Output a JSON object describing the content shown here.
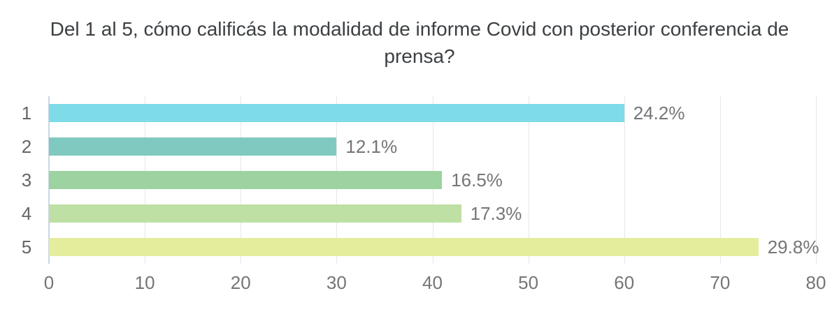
{
  "chart_data": {
    "type": "bar",
    "orientation": "horizontal",
    "title": "Del 1 al 5, cómo calificás la modalidad de informe Covid con posterior conferencia de prensa?",
    "categories": [
      "1",
      "2",
      "3",
      "4",
      "5"
    ],
    "values": [
      60,
      30,
      41,
      43,
      74
    ],
    "value_labels": [
      "24.2%",
      "12.1%",
      "16.5%",
      "17.3%",
      "29.8%"
    ],
    "bar_colors": [
      "#7edbe8",
      "#80c9c0",
      "#9cd3a1",
      "#bee0a4",
      "#e3ed9c"
    ],
    "xlabel": "",
    "ylabel": "",
    "xlim": [
      0,
      80
    ],
    "x_ticks": [
      0,
      10,
      20,
      30,
      40,
      50,
      60,
      70,
      80
    ],
    "grid": "vertical",
    "legend": "none"
  },
  "colors": {
    "background": "#ffffff",
    "title_text": "#3c4043",
    "category_label": "#666666",
    "tick_label": "#757575",
    "value_label": "#757575",
    "gridline": "#e6e6e6",
    "axis_line": "#ccd7e0"
  }
}
